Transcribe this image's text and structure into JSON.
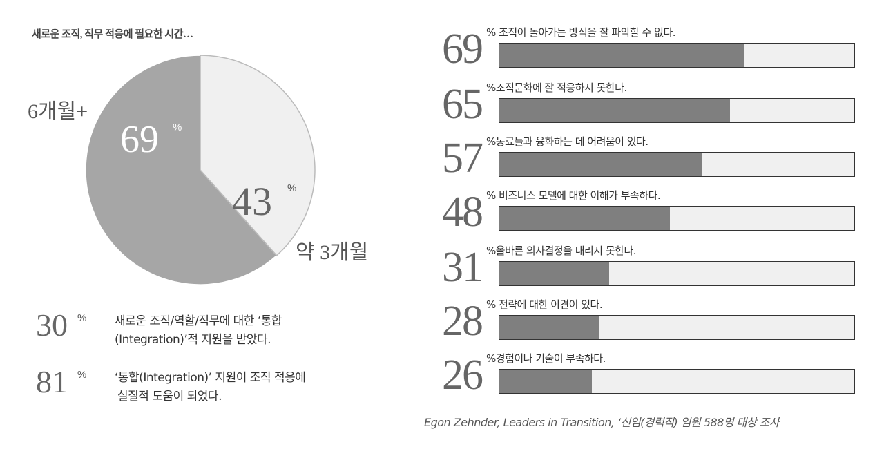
{
  "chart_data": [
    {
      "type": "pie",
      "title": "새로운 조직, 직무 적응에 필요한 시간…",
      "slices": [
        {
          "label": "6개월+",
          "value": 69,
          "value_label": "69",
          "unit": "%",
          "color": "#a6a6a6"
        },
        {
          "label": "약 3개월",
          "value": 43,
          "value_label": "43",
          "unit": "%",
          "color": "#f0f0f0"
        }
      ]
    },
    {
      "type": "bar",
      "orientation": "horizontal",
      "xlim": [
        0,
        100
      ],
      "unit": "%",
      "categories": [
        "조직이 돌아가는 방식을 잘 파악할 수 없다.",
        "조직문화에 잘 적응하지 못한다.",
        "동료들과 융화하는 데 어려움이 있다.",
        "비즈니스 모델에 대한 이해가 부족하다.",
        "올바른 의사결정을 내리지 못한다.",
        "전략에 대한 이견이 있다.",
        "경험이나 기술이 부족하다."
      ],
      "values": [
        69,
        65,
        57,
        48,
        31,
        28,
        26
      ],
      "fill_color": "#7f7f7f",
      "track_color": "#f0f0f0"
    }
  ],
  "stats": [
    {
      "value": "30",
      "unit": "%",
      "line1": "새로운 조직/역할/직무에 대한 ‘통합",
      "line2": "(Integration)’적 지원을 받았다."
    },
    {
      "value": "81",
      "unit": "%",
      "line1": "‘통합(Integration)’ 지원이 조직 적응에",
      "line2": "실질적 도움이 되었다."
    }
  ],
  "source": "Egon Zehnder, Leaders in Transition, ‘신임(경력직) 임원 588명 대상 조사"
}
